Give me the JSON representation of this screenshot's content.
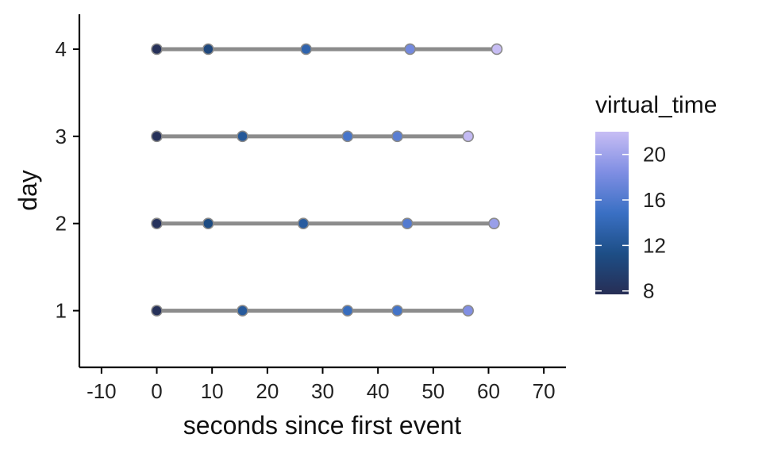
{
  "chart_data": {
    "type": "line",
    "xlabel": "seconds since first event",
    "ylabel": "day",
    "xlim": [
      -14,
      74
    ],
    "ylim": [
      0.35,
      4.4
    ],
    "x_ticks": [
      -10,
      0,
      10,
      20,
      30,
      40,
      50,
      60,
      70
    ],
    "y_ticks": [
      1,
      2,
      3,
      4
    ],
    "grid": false,
    "segment_color": "#8c8c8c",
    "point_edge_color": "#8a8a8a",
    "legend": {
      "title": "virtual_time",
      "position": "right",
      "range": [
        7.7,
        22
      ],
      "ticks": [
        8,
        12,
        16,
        20
      ],
      "colors": [
        "#272e55",
        "#1d4e86",
        "#3a70c4",
        "#7f8ee3",
        "#c7bdf4"
      ]
    },
    "series": [
      {
        "day": 1,
        "points": [
          {
            "x": 0,
            "v": 8
          },
          {
            "x": 15.5,
            "v": 12.5
          },
          {
            "x": 34.5,
            "v": 14.5
          },
          {
            "x": 43.5,
            "v": 15.3
          },
          {
            "x": 56.3,
            "v": 18.5
          }
        ]
      },
      {
        "day": 2,
        "points": [
          {
            "x": 0,
            "v": 8.2
          },
          {
            "x": 9.3,
            "v": 11
          },
          {
            "x": 26.5,
            "v": 12.7
          },
          {
            "x": 45.3,
            "v": 16.2
          },
          {
            "x": 61,
            "v": 19.7
          }
        ]
      },
      {
        "day": 3,
        "points": [
          {
            "x": 0,
            "v": 8
          },
          {
            "x": 15.5,
            "v": 12.3
          },
          {
            "x": 34.5,
            "v": 15.5
          },
          {
            "x": 43.5,
            "v": 16.5
          },
          {
            "x": 56.3,
            "v": 21.8
          }
        ]
      },
      {
        "day": 4,
        "points": [
          {
            "x": 0,
            "v": 8
          },
          {
            "x": 9.3,
            "v": 10.5
          },
          {
            "x": 27,
            "v": 13.5
          },
          {
            "x": 45.8,
            "v": 17.8
          },
          {
            "x": 61.5,
            "v": 22
          }
        ]
      }
    ]
  }
}
